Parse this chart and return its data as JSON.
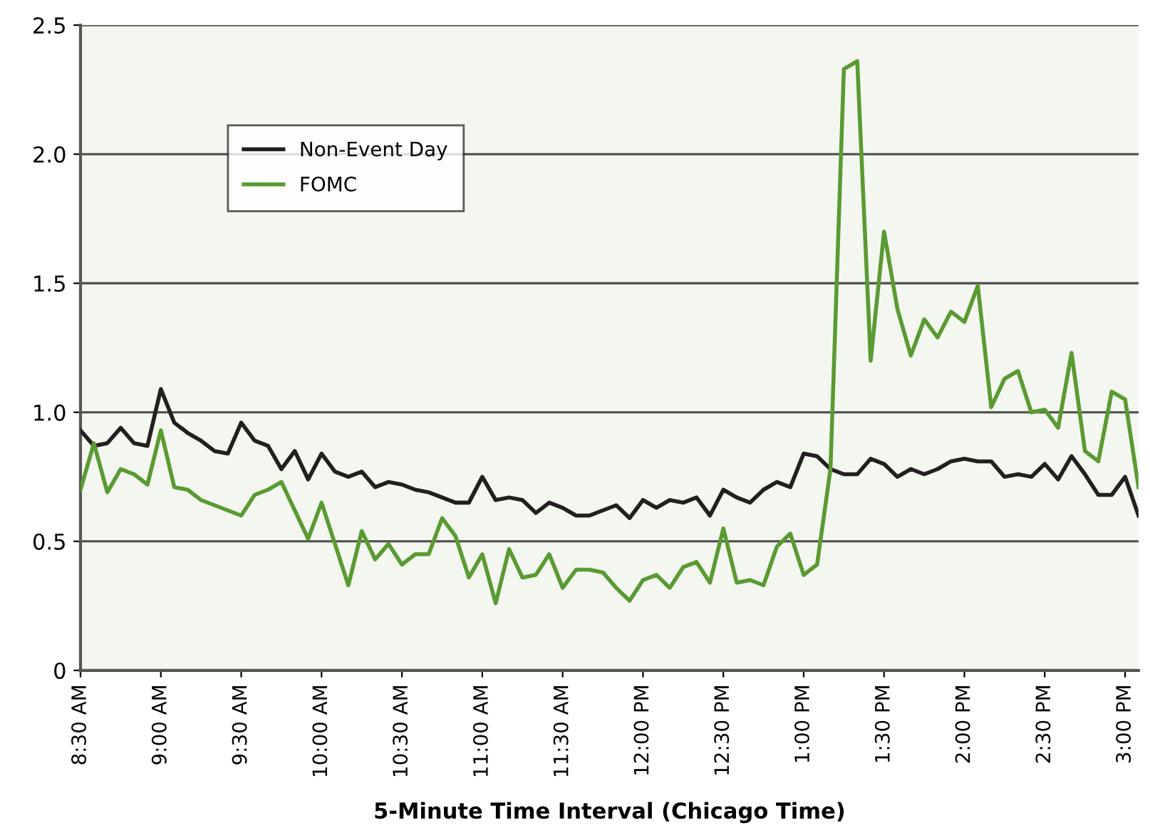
{
  "chart_data": {
    "type": "line",
    "xlabel": "5-Minute Time Interval (Chicago Time)",
    "categories": [
      "8:30 AM",
      null,
      null,
      null,
      null,
      null,
      "9:00 AM",
      null,
      null,
      null,
      null,
      null,
      "9:30 AM",
      null,
      null,
      null,
      null,
      null,
      "10:00 AM",
      null,
      null,
      null,
      null,
      null,
      "10:30 AM",
      null,
      null,
      null,
      null,
      null,
      "11:00 AM",
      null,
      null,
      null,
      null,
      null,
      "11:30 AM",
      null,
      null,
      null,
      null,
      null,
      "12:00 PM",
      null,
      null,
      null,
      null,
      null,
      "12:30 PM",
      null,
      null,
      null,
      null,
      null,
      "1:00 PM",
      null,
      null,
      null,
      null,
      null,
      "1:30 PM",
      null,
      null,
      null,
      null,
      null,
      "2:00 PM",
      null,
      null,
      null,
      null,
      null,
      "2:30 PM",
      null,
      null,
      null,
      null,
      null,
      "3:00 PM",
      null
    ],
    "series": [
      {
        "name": "Non-Event Day",
        "color": "#231f20",
        "values": [
          0.93,
          0.87,
          0.88,
          0.94,
          0.88,
          0.87,
          1.09,
          0.96,
          0.92,
          0.89,
          0.85,
          0.84,
          0.96,
          0.89,
          0.87,
          0.78,
          0.85,
          0.74,
          0.84,
          0.77,
          0.75,
          0.77,
          0.71,
          0.73,
          0.72,
          0.7,
          0.69,
          0.67,
          0.65,
          0.65,
          0.75,
          0.66,
          0.67,
          0.66,
          0.61,
          0.65,
          0.63,
          0.6,
          0.6,
          0.62,
          0.64,
          0.59,
          0.66,
          0.63,
          0.66,
          0.65,
          0.67,
          0.6,
          0.7,
          0.67,
          0.65,
          0.7,
          0.73,
          0.71,
          0.84,
          0.83,
          0.78,
          0.76,
          0.76,
          0.82,
          0.8,
          0.75,
          0.78,
          0.76,
          0.78,
          0.81,
          0.82,
          0.81,
          0.81,
          0.75,
          0.76,
          0.75,
          0.8,
          0.74,
          0.83,
          0.76,
          0.68,
          0.68,
          0.75,
          0.6
        ]
      },
      {
        "name": "FOMC",
        "color": "#5a9a32",
        "values": [
          0.7,
          0.88,
          0.69,
          0.78,
          0.76,
          0.72,
          0.93,
          0.71,
          0.7,
          0.66,
          0.64,
          0.62,
          0.6,
          0.68,
          0.7,
          0.73,
          0.62,
          0.51,
          0.65,
          0.49,
          0.33,
          0.54,
          0.43,
          0.49,
          0.41,
          0.45,
          0.45,
          0.59,
          0.52,
          0.36,
          0.45,
          0.26,
          0.47,
          0.36,
          0.37,
          0.45,
          0.32,
          0.39,
          0.39,
          0.38,
          0.32,
          0.27,
          0.35,
          0.37,
          0.32,
          0.4,
          0.42,
          0.34,
          0.55,
          0.34,
          0.35,
          0.33,
          0.48,
          0.53,
          0.37,
          0.41,
          0.78,
          2.33,
          2.36,
          1.2,
          1.7,
          1.4,
          1.22,
          1.36,
          1.29,
          1.39,
          1.35,
          1.49,
          1.02,
          1.13,
          1.16,
          1.0,
          1.01,
          0.94,
          1.23,
          0.85,
          0.81,
          1.08,
          1.05,
          0.71
        ]
      }
    ],
    "ylim": [
      0,
      2.5
    ],
    "yticks": [
      0,
      {
        "value": 0.5,
        "label": "0.5"
      },
      {
        "value": 1,
        "label": "1.0"
      },
      1.5,
      {
        "value": 2,
        "label": "2.0"
      },
      2.5
    ],
    "grid": "y",
    "legend": "top left",
    "marker": "none",
    "line_style": "solid"
  }
}
